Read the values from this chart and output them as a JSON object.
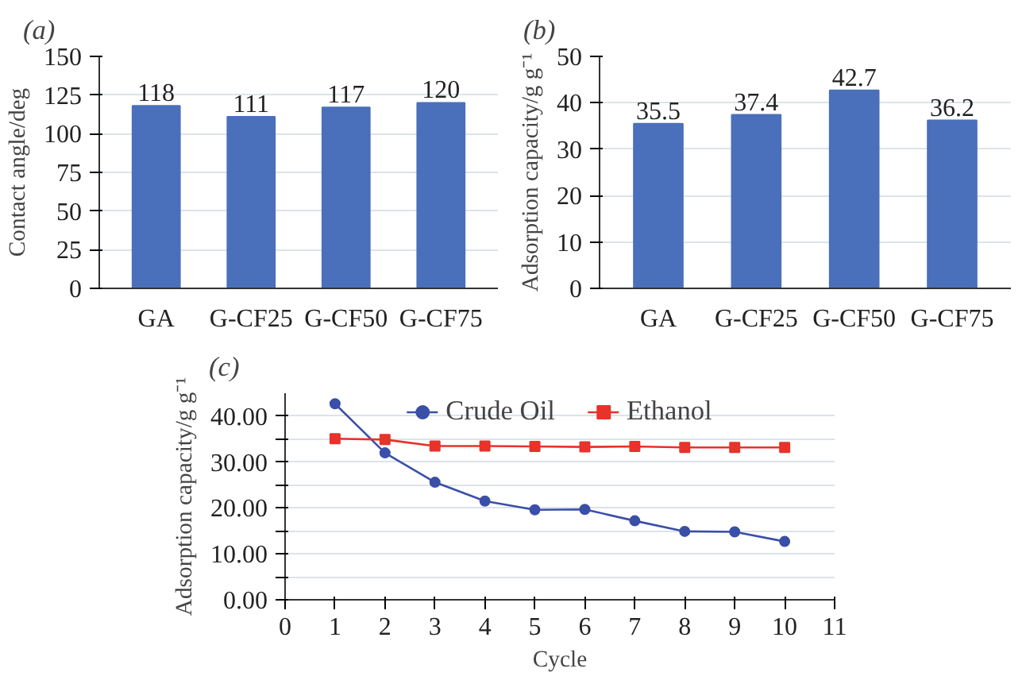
{
  "chart_data": [
    {
      "type": "bar",
      "title": "(a)",
      "ylabel": "Contact angle/deg",
      "categories": [
        "GA",
        "G-CF25",
        "G-CF50",
        "G-CF75"
      ],
      "values": [
        118,
        111,
        117,
        120
      ],
      "color": "#4a70bb",
      "ylim": [
        0,
        150
      ],
      "yticks": [
        0,
        25,
        50,
        75,
        100,
        125,
        150
      ],
      "grid": "y",
      "data_labels": true
    },
    {
      "type": "bar",
      "title": "(b)",
      "ylabel": "Adsorption capacity/g g⁻¹",
      "categories": [
        "GA",
        "G-CF25",
        "G-CF50",
        "G-CF75"
      ],
      "values": [
        35.5,
        37.4,
        42.7,
        36.2
      ],
      "color": "#4a70bb",
      "ylim": [
        0,
        50
      ],
      "yticks": [
        0,
        10,
        20,
        30,
        40,
        50
      ],
      "grid": "y",
      "data_labels": true
    },
    {
      "type": "line",
      "title": "(c)",
      "xlabel": "Cycle",
      "ylabel": "Adsorption capacity/g g⁻¹",
      "x": [
        1,
        2,
        3,
        4,
        5,
        6,
        7,
        8,
        9,
        10
      ],
      "series": [
        {
          "name": "Crude Oil",
          "color": "#3a4fa8",
          "marker": "circle",
          "values": [
            42.7,
            32.0,
            25.6,
            21.5,
            19.6,
            19.7,
            17.2,
            14.9,
            14.8,
            12.7
          ]
        },
        {
          "name": "Ethanol",
          "color": "#e8322a",
          "marker": "square",
          "values": [
            35.1,
            34.9,
            33.5,
            33.5,
            33.4,
            33.3,
            33.4,
            33.2,
            33.2,
            33.2
          ]
        }
      ],
      "xlim": [
        0,
        11
      ],
      "xticks": [
        0,
        1,
        2,
        3,
        4,
        5,
        6,
        7,
        8,
        9,
        10,
        11
      ],
      "ylim": [
        0,
        45
      ],
      "yticks": [
        {
          "value": 0,
          "label": "0.00"
        },
        {
          "value": 5,
          "label": null
        },
        {
          "value": 10,
          "label": "10.00"
        },
        {
          "value": 15,
          "label": null
        },
        {
          "value": 20,
          "label": "20.00"
        },
        {
          "value": 25,
          "label": null
        },
        {
          "value": 30,
          "label": "30.00"
        },
        {
          "value": 35,
          "label": null
        },
        {
          "value": 40,
          "label": "40.00"
        }
      ],
      "grid": "y",
      "legend": "top"
    }
  ]
}
